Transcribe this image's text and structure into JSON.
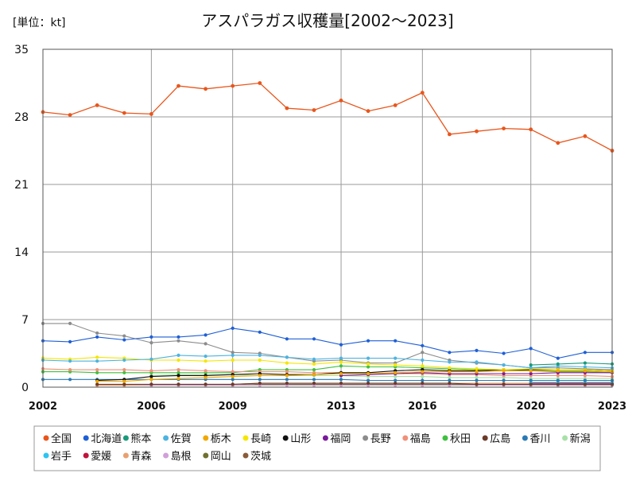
{
  "unit_label": "[単位：kt]",
  "chart_data": {
    "type": "line",
    "title": "アスパラガス収穫量[2002～2023]",
    "xlabel": "",
    "ylabel": "",
    "x": [
      2002,
      2003,
      2004,
      2005,
      2006,
      2007,
      2008,
      2009,
      2010,
      2011,
      2012,
      2013,
      2014,
      2015,
      2016,
      2017,
      2018,
      2019,
      2020,
      2021,
      2022,
      2023
    ],
    "x_ticks": [
      "2002",
      "2006",
      "2009",
      "2013",
      "2016",
      "2020",
      "2023"
    ],
    "ylim": [
      0,
      35
    ],
    "y_ticks": [
      "0",
      "7",
      "14",
      "21",
      "28",
      "35"
    ],
    "grid": true,
    "legend_position": "bottom",
    "series": [
      {
        "name": "全国",
        "color": "#e8561c",
        "values": [
          28.5,
          28.2,
          29.2,
          28.4,
          28.3,
          31.2,
          30.9,
          31.2,
          31.5,
          28.9,
          28.7,
          29.7,
          28.6,
          29.2,
          30.5,
          26.2,
          26.5,
          26.8,
          26.7,
          25.3,
          26.0,
          24.5
        ]
      },
      {
        "name": "北海道",
        "color": "#1f5fd6",
        "values": [
          4.8,
          4.7,
          5.2,
          4.9,
          5.2,
          5.2,
          5.4,
          6.1,
          5.7,
          5.0,
          5.0,
          4.4,
          4.8,
          4.8,
          4.3,
          3.6,
          3.8,
          3.5,
          4.0,
          3.0,
          3.6,
          3.6
        ]
      },
      {
        "name": "熊本",
        "color": "#1a9a7a",
        "values": [
          null,
          null,
          null,
          null,
          null,
          null,
          null,
          null,
          null,
          null,
          null,
          null,
          null,
          null,
          null,
          null,
          null,
          null,
          2.3,
          2.4,
          2.5,
          2.4
        ]
      },
      {
        "name": "佐賀",
        "color": "#4db3e0",
        "values": [
          2.8,
          2.7,
          2.7,
          2.8,
          2.9,
          3.3,
          3.2,
          3.3,
          3.3,
          3.1,
          2.9,
          3.0,
          3.0,
          3.0,
          2.8,
          2.6,
          2.6,
          2.3,
          2.0,
          2.2,
          2.1,
          2.0
        ]
      },
      {
        "name": "栃木",
        "color": "#f0a800",
        "values": [
          null,
          null,
          0.6,
          0.6,
          0.8,
          0.9,
          1.0,
          1.1,
          1.2,
          1.2,
          1.3,
          1.4,
          1.4,
          1.5,
          1.6,
          1.6,
          1.6,
          1.7,
          1.7,
          1.7,
          1.7,
          1.6
        ]
      },
      {
        "name": "長崎",
        "color": "#f5e600",
        "values": [
          3.0,
          2.9,
          3.1,
          3.0,
          2.8,
          2.8,
          2.7,
          2.8,
          2.8,
          2.5,
          2.4,
          2.6,
          2.4,
          2.3,
          2.2,
          2.0,
          1.9,
          1.8,
          1.9,
          1.8,
          1.8,
          1.7
        ]
      },
      {
        "name": "山形",
        "color": "#111111",
        "values": [
          null,
          null,
          0.7,
          0.8,
          1.1,
          1.2,
          1.2,
          1.3,
          1.4,
          1.3,
          1.3,
          1.5,
          1.5,
          1.7,
          1.8,
          1.7,
          1.7,
          1.8,
          1.8,
          1.8,
          1.8,
          1.7
        ]
      },
      {
        "name": "福岡",
        "color": "#7a1a9a",
        "values": [
          null,
          null,
          null,
          null,
          null,
          null,
          null,
          null,
          null,
          null,
          null,
          1.2,
          1.3,
          1.4,
          1.5,
          1.4,
          1.4,
          1.4,
          1.4,
          1.5,
          1.5,
          1.5
        ]
      },
      {
        "name": "長野",
        "color": "#8c8c8c",
        "values": [
          6.6,
          6.6,
          5.6,
          5.3,
          4.6,
          4.8,
          4.5,
          3.6,
          3.5,
          3.1,
          2.7,
          2.8,
          2.5,
          2.5,
          3.6,
          2.8,
          2.5,
          2.3,
          2.0,
          2.0,
          1.9,
          1.8
        ]
      },
      {
        "name": "福島",
        "color": "#f0907a",
        "values": [
          1.9,
          1.8,
          1.8,
          1.8,
          1.7,
          1.8,
          1.7,
          1.6,
          1.6,
          1.6,
          1.5,
          1.5,
          1.4,
          1.4,
          1.4,
          1.3,
          1.3,
          1.2,
          1.2,
          1.2,
          1.2,
          1.1
        ]
      },
      {
        "name": "秋田",
        "color": "#3fc03f",
        "values": [
          1.6,
          1.6,
          1.5,
          1.5,
          1.5,
          1.5,
          1.5,
          1.5,
          1.8,
          1.8,
          1.8,
          2.2,
          2.1,
          2.1,
          2.0,
          1.9,
          1.8,
          1.8,
          1.7,
          1.6,
          1.6,
          1.5
        ]
      },
      {
        "name": "広島",
        "color": "#6b3a2a",
        "values": [
          null,
          null,
          0.3,
          0.3,
          0.3,
          0.3,
          0.3,
          0.3,
          0.4,
          0.4,
          0.4,
          0.4,
          0.4,
          0.4,
          0.4,
          0.4,
          0.3,
          0.3,
          0.3,
          0.3,
          0.3,
          0.3
        ]
      },
      {
        "name": "香川",
        "color": "#2a7ab5",
        "values": [
          0.8,
          0.8,
          0.8,
          0.8,
          0.8,
          0.8,
          0.8,
          0.8,
          0.8,
          0.8,
          0.8,
          0.8,
          0.7,
          0.7,
          0.7,
          0.7,
          0.7,
          0.7,
          0.7,
          0.7,
          0.7,
          0.7
        ]
      },
      {
        "name": "新潟",
        "color": "#a8e0a8",
        "values": [
          null,
          null,
          null,
          null,
          1.2,
          1.3,
          1.3,
          1.3,
          1.2,
          1.2,
          1.2,
          1.2,
          1.1,
          1.1,
          1.1,
          1.0,
          1.0,
          1.0,
          0.9,
          0.9,
          0.9,
          0.9
        ]
      },
      {
        "name": "岩手",
        "color": "#2ec4f0",
        "values": [
          null,
          null,
          null,
          null,
          null,
          null,
          null,
          null,
          null,
          null,
          null,
          null,
          null,
          null,
          null,
          null,
          null,
          null,
          0.5,
          0.5,
          0.5,
          0.5
        ]
      },
      {
        "name": "愛媛",
        "color": "#c0143c",
        "values": [
          null,
          null,
          null,
          null,
          null,
          null,
          null,
          null,
          null,
          null,
          null,
          null,
          null,
          null,
          null,
          null,
          null,
          null,
          0.4,
          0.4,
          0.4,
          0.4
        ]
      },
      {
        "name": "青森",
        "color": "#e8a070",
        "values": [
          null,
          null,
          0.2,
          0.2,
          0.3,
          0.3,
          0.3,
          0.3,
          0.4,
          0.4,
          0.4,
          0.4,
          0.4,
          0.4,
          0.4,
          0.4,
          0.4,
          0.4,
          0.4,
          0.4,
          0.3,
          0.3
        ]
      },
      {
        "name": "島根",
        "color": "#d0a0d8",
        "values": [
          null,
          null,
          0.2,
          0.2,
          0.2,
          0.2,
          0.2,
          0.2,
          0.2,
          0.2,
          0.2,
          0.2,
          0.2,
          0.2,
          0.2,
          0.2,
          0.2,
          0.2,
          0.2,
          0.2,
          0.2,
          0.2
        ]
      },
      {
        "name": "岡山",
        "color": "#707030",
        "values": [
          null,
          null,
          0.2,
          0.2,
          0.2,
          0.2,
          0.2,
          0.2,
          0.3,
          0.3,
          0.3,
          0.3,
          0.3,
          0.3,
          0.3,
          0.3,
          0.3,
          0.3,
          0.3,
          0.3,
          0.3,
          0.3
        ]
      },
      {
        "name": "茨城",
        "color": "#8a5a3a",
        "values": [
          null,
          null,
          null,
          null,
          null,
          null,
          null,
          null,
          null,
          null,
          null,
          null,
          null,
          null,
          null,
          null,
          null,
          null,
          0.2,
          0.2,
          0.2,
          0.2
        ]
      }
    ]
  }
}
